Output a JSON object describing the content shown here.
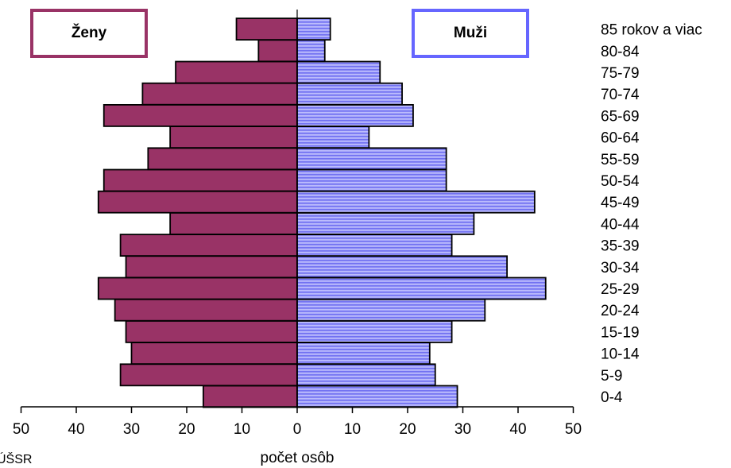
{
  "chart_data": {
    "type": "bar",
    "orientation": "horizontal",
    "layout": "population-pyramid",
    "categories": [
      "0-4",
      "5-9",
      "10-14",
      "15-19",
      "20-24",
      "25-29",
      "30-34",
      "35-39",
      "40-44",
      "45-49",
      "50-54",
      "55-59",
      "60-64",
      "65-69",
      "70-74",
      "75-79",
      "80-84",
      "85 rokov a viac"
    ],
    "series": [
      {
        "name": "Ženy",
        "side": "left",
        "color": "#993366",
        "values": [
          17,
          32,
          30,
          31,
          33,
          36,
          31,
          32,
          23,
          36,
          35,
          27,
          23,
          35,
          28,
          22,
          7,
          11
        ]
      },
      {
        "name": "Muži",
        "side": "right",
        "color": "#6666ff",
        "values": [
          29,
          25,
          24,
          28,
          34,
          45,
          38,
          28,
          32,
          43,
          27,
          27,
          13,
          21,
          19,
          15,
          5,
          6
        ]
      }
    ],
    "x_ticks": [
      "50",
      "40",
      "30",
      "20",
      "10",
      "0",
      "10",
      "20",
      "30",
      "40",
      "50"
    ],
    "xlim": [
      -50,
      50
    ],
    "xlabel": "počet osôb",
    "ylabel": "",
    "title": "",
    "grid": false,
    "legend_position": "top"
  },
  "source_note": "ÚŠSR"
}
